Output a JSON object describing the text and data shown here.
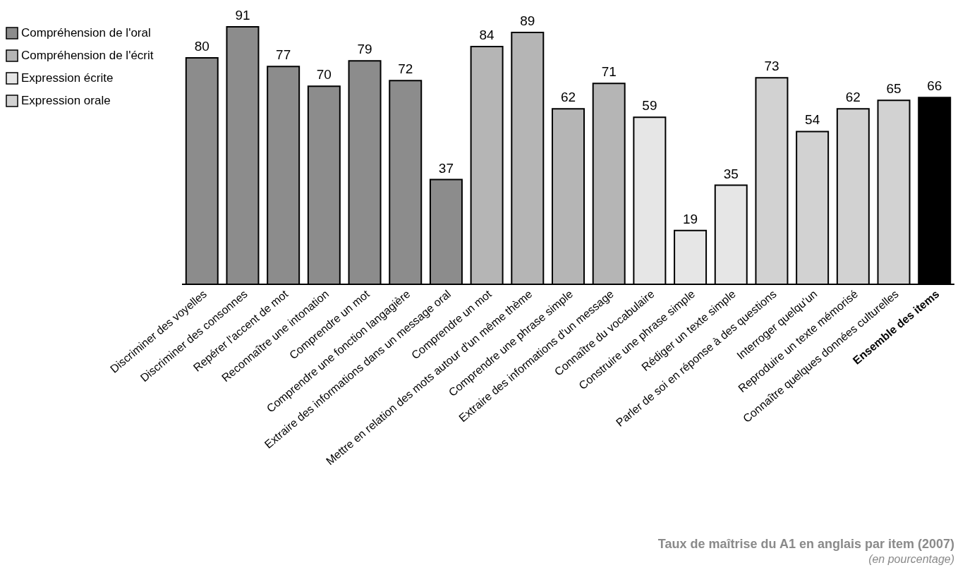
{
  "chart_data": {
    "type": "bar",
    "title": "Taux de maîtrise du A1 en anglais par item (2007)",
    "subtitle": "(en pourcentage)",
    "categories": [
      "Discriminer des voyelles",
      "Discriminer des consonnes",
      "Repérer l'accent de mot",
      "Reconnaître une intonation",
      "Comprendre un mot",
      "Comprendre une fonction langagière",
      "Extraire des informations dans un message oral",
      "Comprendre un mot",
      "Mettre en relation des mots autour d'un même thème",
      "Comprendre une phrase simple",
      "Extraire des informations d'un message",
      "Connaître du vocabulaire",
      "Construire une phrase simple",
      "Rédiger un texte simple",
      "Parler de soi en réponse à des questions",
      "Interroger quelqu'un",
      "Reproduire un texte mémorisé",
      "Connaître quelques données culturelles",
      "Ensemble des items"
    ],
    "series": [
      {
        "name": "Compréhension de l'oral",
        "color": "#8c8c8c",
        "values": [
          80,
          91,
          77,
          70,
          79,
          72,
          37,
          null,
          null,
          null,
          null,
          null,
          null,
          null,
          null,
          null,
          null,
          null,
          null
        ]
      },
      {
        "name": "Compréhension de l'écrit",
        "color": "#b5b5b5",
        "values": [
          null,
          null,
          null,
          null,
          null,
          null,
          null,
          84,
          89,
          62,
          71,
          null,
          null,
          null,
          null,
          null,
          null,
          null,
          null
        ]
      },
      {
        "name": "Expression écrite",
        "color": "#e6e6e6",
        "values": [
          null,
          null,
          null,
          null,
          null,
          null,
          null,
          null,
          null,
          null,
          null,
          59,
          19,
          35,
          null,
          null,
          null,
          null,
          null
        ]
      },
      {
        "name": "Expression orale",
        "color": "#d2d2d2",
        "values": [
          null,
          null,
          null,
          null,
          null,
          null,
          null,
          null,
          null,
          null,
          null,
          null,
          null,
          null,
          73,
          54,
          62,
          65,
          null
        ]
      },
      {
        "color": "#000000",
        "values": [
          null,
          null,
          null,
          null,
          null,
          null,
          null,
          null,
          null,
          null,
          null,
          null,
          null,
          null,
          null,
          null,
          null,
          null,
          66
        ]
      }
    ],
    "data_labels": true,
    "legend": "top left"
  }
}
